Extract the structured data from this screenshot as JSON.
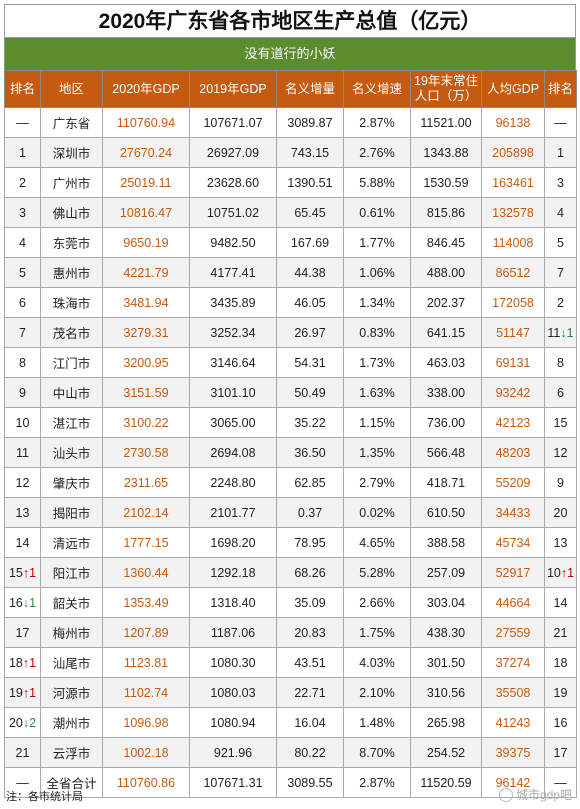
{
  "title": "2020年广东省各市地区生产总值（亿元）",
  "subtitle": "没有道行的小妖",
  "headers": [
    "排名",
    "地区",
    "2020年GDP",
    "2019年GDP",
    "名义增量",
    "名义增速",
    "19年末常住人口（万）",
    "人均GDP",
    "排名"
  ],
  "rows": [
    {
      "rank": "—",
      "rank_arrow": "",
      "rank_arrow_dir": "",
      "region": "广东省",
      "gdp2020": "110760.94",
      "gdp2019": "107671.07",
      "inc": "3089.87",
      "rate": "2.87%",
      "pop": "11521.00",
      "per": "96138",
      "rank2": "—",
      "rank2_arrow": "",
      "rank2_arrow_dir": ""
    },
    {
      "rank": "1",
      "rank_arrow": "",
      "rank_arrow_dir": "",
      "region": "深圳市",
      "gdp2020": "27670.24",
      "gdp2019": "26927.09",
      "inc": "743.15",
      "rate": "2.76%",
      "pop": "1343.88",
      "per": "205898",
      "rank2": "1",
      "rank2_arrow": "",
      "rank2_arrow_dir": ""
    },
    {
      "rank": "2",
      "rank_arrow": "",
      "rank_arrow_dir": "",
      "region": "广州市",
      "gdp2020": "25019.11",
      "gdp2019": "23628.60",
      "inc": "1390.51",
      "rate": "5.88%",
      "pop": "1530.59",
      "per": "163461",
      "rank2": "3",
      "rank2_arrow": "",
      "rank2_arrow_dir": ""
    },
    {
      "rank": "3",
      "rank_arrow": "",
      "rank_arrow_dir": "",
      "region": "佛山市",
      "gdp2020": "10816.47",
      "gdp2019": "10751.02",
      "inc": "65.45",
      "rate": "0.61%",
      "pop": "815.86",
      "per": "132578",
      "rank2": "4",
      "rank2_arrow": "",
      "rank2_arrow_dir": ""
    },
    {
      "rank": "4",
      "rank_arrow": "",
      "rank_arrow_dir": "",
      "region": "东莞市",
      "gdp2020": "9650.19",
      "gdp2019": "9482.50",
      "inc": "167.69",
      "rate": "1.77%",
      "pop": "846.45",
      "per": "114008",
      "rank2": "5",
      "rank2_arrow": "",
      "rank2_arrow_dir": ""
    },
    {
      "rank": "5",
      "rank_arrow": "",
      "rank_arrow_dir": "",
      "region": "惠州市",
      "gdp2020": "4221.79",
      "gdp2019": "4177.41",
      "inc": "44.38",
      "rate": "1.06%",
      "pop": "488.00",
      "per": "86512",
      "rank2": "7",
      "rank2_arrow": "",
      "rank2_arrow_dir": ""
    },
    {
      "rank": "6",
      "rank_arrow": "",
      "rank_arrow_dir": "",
      "region": "珠海市",
      "gdp2020": "3481.94",
      "gdp2019": "3435.89",
      "inc": "46.05",
      "rate": "1.34%",
      "pop": "202.37",
      "per": "172058",
      "rank2": "2",
      "rank2_arrow": "",
      "rank2_arrow_dir": ""
    },
    {
      "rank": "7",
      "rank_arrow": "",
      "rank_arrow_dir": "",
      "region": "茂名市",
      "gdp2020": "3279.31",
      "gdp2019": "3252.34",
      "inc": "26.97",
      "rate": "0.83%",
      "pop": "641.15",
      "per": "51147",
      "rank2": "11",
      "rank2_arrow": "↓1",
      "rank2_arrow_dir": "down"
    },
    {
      "rank": "8",
      "rank_arrow": "",
      "rank_arrow_dir": "",
      "region": "江门市",
      "gdp2020": "3200.95",
      "gdp2019": "3146.64",
      "inc": "54.31",
      "rate": "1.73%",
      "pop": "463.03",
      "per": "69131",
      "rank2": "8",
      "rank2_arrow": "",
      "rank2_arrow_dir": ""
    },
    {
      "rank": "9",
      "rank_arrow": "",
      "rank_arrow_dir": "",
      "region": "中山市",
      "gdp2020": "3151.59",
      "gdp2019": "3101.10",
      "inc": "50.49",
      "rate": "1.63%",
      "pop": "338.00",
      "per": "93242",
      "rank2": "6",
      "rank2_arrow": "",
      "rank2_arrow_dir": ""
    },
    {
      "rank": "10",
      "rank_arrow": "",
      "rank_arrow_dir": "",
      "region": "湛江市",
      "gdp2020": "3100.22",
      "gdp2019": "3065.00",
      "inc": "35.22",
      "rate": "1.15%",
      "pop": "736.00",
      "per": "42123",
      "rank2": "15",
      "rank2_arrow": "",
      "rank2_arrow_dir": ""
    },
    {
      "rank": "11",
      "rank_arrow": "",
      "rank_arrow_dir": "",
      "region": "汕头市",
      "gdp2020": "2730.58",
      "gdp2019": "2694.08",
      "inc": "36.50",
      "rate": "1.35%",
      "pop": "566.48",
      "per": "48203",
      "rank2": "12",
      "rank2_arrow": "",
      "rank2_arrow_dir": ""
    },
    {
      "rank": "12",
      "rank_arrow": "",
      "rank_arrow_dir": "",
      "region": "肇庆市",
      "gdp2020": "2311.65",
      "gdp2019": "2248.80",
      "inc": "62.85",
      "rate": "2.79%",
      "pop": "418.71",
      "per": "55209",
      "rank2": "9",
      "rank2_arrow": "",
      "rank2_arrow_dir": ""
    },
    {
      "rank": "13",
      "rank_arrow": "",
      "rank_arrow_dir": "",
      "region": "揭阳市",
      "gdp2020": "2102.14",
      "gdp2019": "2101.77",
      "inc": "0.37",
      "rate": "0.02%",
      "pop": "610.50",
      "per": "34433",
      "rank2": "20",
      "rank2_arrow": "",
      "rank2_arrow_dir": ""
    },
    {
      "rank": "14",
      "rank_arrow": "",
      "rank_arrow_dir": "",
      "region": "清远市",
      "gdp2020": "1777.15",
      "gdp2019": "1698.20",
      "inc": "78.95",
      "rate": "4.65%",
      "pop": "388.58",
      "per": "45734",
      "rank2": "13",
      "rank2_arrow": "",
      "rank2_arrow_dir": ""
    },
    {
      "rank": "15",
      "rank_arrow": "↑1",
      "rank_arrow_dir": "up",
      "region": "阳江市",
      "gdp2020": "1360.44",
      "gdp2019": "1292.18",
      "inc": "68.26",
      "rate": "5.28%",
      "pop": "257.09",
      "per": "52917",
      "rank2": "10",
      "rank2_arrow": "↑1",
      "rank2_arrow_dir": "up"
    },
    {
      "rank": "16",
      "rank_arrow": "↓1",
      "rank_arrow_dir": "down",
      "region": "韶关市",
      "gdp2020": "1353.49",
      "gdp2019": "1318.40",
      "inc": "35.09",
      "rate": "2.66%",
      "pop": "303.04",
      "per": "44664",
      "rank2": "14",
      "rank2_arrow": "",
      "rank2_arrow_dir": ""
    },
    {
      "rank": "17",
      "rank_arrow": "",
      "rank_arrow_dir": "",
      "region": "梅州市",
      "gdp2020": "1207.89",
      "gdp2019": "1187.06",
      "inc": "20.83",
      "rate": "1.75%",
      "pop": "438.30",
      "per": "27559",
      "rank2": "21",
      "rank2_arrow": "",
      "rank2_arrow_dir": ""
    },
    {
      "rank": "18",
      "rank_arrow": "↑1",
      "rank_arrow_dir": "up",
      "region": "汕尾市",
      "gdp2020": "1123.81",
      "gdp2019": "1080.30",
      "inc": "43.51",
      "rate": "4.03%",
      "pop": "301.50",
      "per": "37274",
      "rank2": "18",
      "rank2_arrow": "",
      "rank2_arrow_dir": ""
    },
    {
      "rank": "19",
      "rank_arrow": "↑1",
      "rank_arrow_dir": "up",
      "region": "河源市",
      "gdp2020": "1102.74",
      "gdp2019": "1080.03",
      "inc": "22.71",
      "rate": "2.10%",
      "pop": "310.56",
      "per": "35508",
      "rank2": "19",
      "rank2_arrow": "",
      "rank2_arrow_dir": ""
    },
    {
      "rank": "20",
      "rank_arrow": "↓2",
      "rank_arrow_dir": "down",
      "region": "潮州市",
      "gdp2020": "1096.98",
      "gdp2019": "1080.94",
      "inc": "16.04",
      "rate": "1.48%",
      "pop": "265.98",
      "per": "41243",
      "rank2": "16",
      "rank2_arrow": "",
      "rank2_arrow_dir": ""
    },
    {
      "rank": "21",
      "rank_arrow": "",
      "rank_arrow_dir": "",
      "region": "云浮市",
      "gdp2020": "1002.18",
      "gdp2019": "921.96",
      "inc": "80.22",
      "rate": "8.70%",
      "pop": "254.52",
      "per": "39375",
      "rank2": "17",
      "rank2_arrow": "",
      "rank2_arrow_dir": ""
    },
    {
      "rank": "—",
      "rank_arrow": "",
      "rank_arrow_dir": "",
      "region": "全省合计",
      "gdp2020": "110760.86",
      "gdp2019": "107671.31",
      "inc": "3089.55",
      "rate": "2.87%",
      "pop": "11520.59",
      "per": "96142",
      "rank2": "—",
      "rank2_arrow": "",
      "rank2_arrow_dir": ""
    }
  ],
  "note": "注：各市统计局",
  "watermark": "城市gdp吧",
  "colors": {
    "header_bg": "#c55a11",
    "subtitle_bg": "#5b8c2e",
    "gdp_text": "#c55a11",
    "arrow_up": "#c00000",
    "arrow_down": "#2e8b3e"
  }
}
